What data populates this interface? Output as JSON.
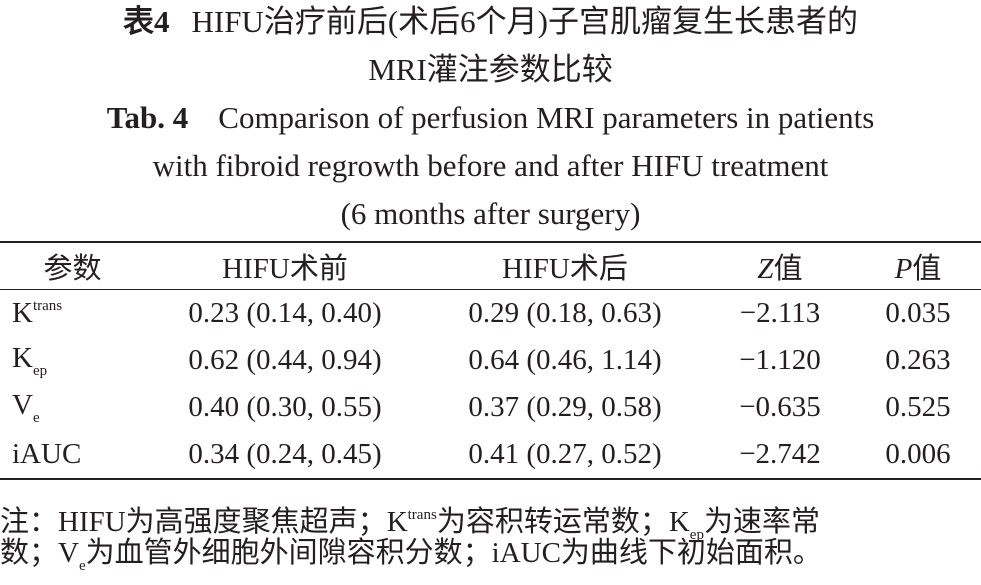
{
  "title_cn": {
    "label": "表4",
    "lines": [
      "HIFU治疗前后(术后6个月)子宫肌瘤复生长患者的",
      "MRI灌注参数比较"
    ]
  },
  "title_en": {
    "label": "Tab. 4",
    "lines": [
      "Comparison of perfusion MRI parameters in patients",
      "with fibroid regrowth before and after HIFU treatment",
      "(6 months after surgery)"
    ]
  },
  "table": {
    "header": [
      "参数",
      "HIFU术前",
      "HIFU术后",
      {
        "var": "Z",
        "text": "值"
      },
      {
        "var": "P",
        "text": "值"
      }
    ],
    "rows": [
      [
        {
          "base": "K",
          "sup": "trans"
        },
        "0.23 (0.14, 0.40)",
        "0.29 (0.18, 0.63)",
        "−2.113",
        "0.035"
      ],
      [
        {
          "base": "K",
          "sub": "ep"
        },
        "0.62 (0.44, 0.94)",
        "0.64 (0.46, 1.14)",
        "−1.120",
        "0.263"
      ],
      [
        {
          "base": "V",
          "sub": "e"
        },
        "0.40 (0.30, 0.55)",
        "0.37 (0.29, 0.58)",
        "−0.635",
        "0.525"
      ],
      [
        "iAUC",
        "0.34 (0.24, 0.45)",
        "0.41 (0.27, 0.52)",
        "−2.742",
        "0.006"
      ]
    ]
  },
  "note": {
    "lines": [
      [
        "注：HIFU为高强度聚焦超声；",
        {
          "base": "K",
          "sup": "trans"
        },
        "为容积转运常数；",
        {
          "base": "K",
          "sub": "ep"
        },
        "为速率常"
      ],
      [
        "数；",
        {
          "base": "V",
          "sub": "e"
        },
        "为血管外细胞外间隙容积分数；iAUC为曲线下初始面积。"
      ]
    ]
  }
}
